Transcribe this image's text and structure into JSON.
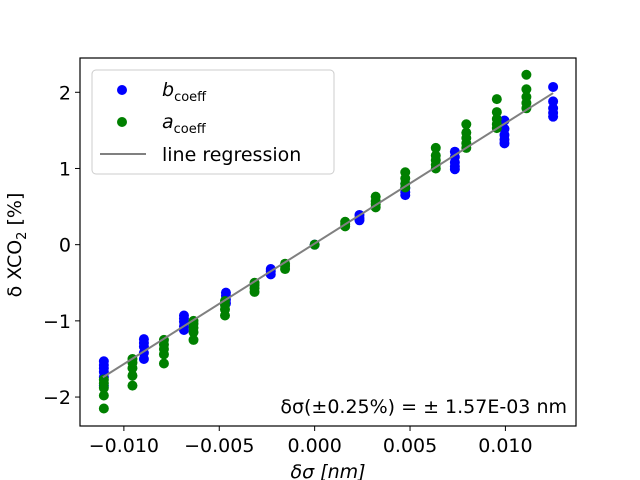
{
  "chart_data": {
    "type": "scatter",
    "title": "",
    "xlabel": {
      "main": "δσ [nm]"
    },
    "ylabel": {
      "prefix": "δ XCO",
      "subscript": "2",
      "suffix": " [%]"
    },
    "xlim": [
      -0.0123,
      0.0137
    ],
    "ylim": [
      -2.38,
      2.45
    ],
    "xticks": [
      -0.01,
      -0.005,
      0.0,
      0.005,
      0.01
    ],
    "xtick_labels": [
      "−0.010",
      "−0.005",
      "0.000",
      "0.005",
      "0.010"
    ],
    "yticks": [
      -2,
      -1,
      0,
      1,
      2
    ],
    "ytick_labels": [
      "−2",
      "−1",
      "0",
      "1",
      "2"
    ],
    "grid": false,
    "legend_position": "top-left",
    "annotation": "δσ(±0.25%) = ± 1.57E-03 nm",
    "series": [
      {
        "name": "b",
        "name_subscript": "coeff",
        "kind": "scatter",
        "color": "#0000ff",
        "points": [
          [
            -0.01105,
            -1.53
          ],
          [
            -0.01105,
            -1.58
          ],
          [
            -0.01105,
            -1.62
          ],
          [
            -0.01105,
            -1.67
          ],
          [
            -0.01105,
            -1.74
          ],
          [
            -0.01105,
            -1.85
          ],
          [
            -0.00895,
            -1.24
          ],
          [
            -0.00895,
            -1.29
          ],
          [
            -0.00895,
            -1.34
          ],
          [
            -0.00895,
            -1.42
          ],
          [
            -0.00895,
            -1.5
          ],
          [
            -0.00685,
            -0.93
          ],
          [
            -0.00685,
            -0.97
          ],
          [
            -0.00685,
            -1.01
          ],
          [
            -0.00685,
            -1.07
          ],
          [
            -0.00685,
            -1.12
          ],
          [
            -0.00465,
            -0.63
          ],
          [
            -0.00465,
            -0.67
          ],
          [
            -0.00465,
            -0.72
          ],
          [
            -0.00465,
            -0.77
          ],
          [
            -0.0023,
            -0.32
          ],
          [
            -0.0023,
            -0.35
          ],
          [
            -0.0023,
            -0.39
          ],
          [
            0.0,
            0.0
          ],
          [
            0.00235,
            0.32
          ],
          [
            0.00235,
            0.35
          ],
          [
            0.00235,
            0.39
          ],
          [
            0.00475,
            0.65
          ],
          [
            0.00475,
            0.69
          ],
          [
            0.00475,
            0.74
          ],
          [
            0.00475,
            0.8
          ],
          [
            0.00735,
            0.99
          ],
          [
            0.00735,
            1.03
          ],
          [
            0.00735,
            1.08
          ],
          [
            0.00735,
            1.15
          ],
          [
            0.00735,
            1.22
          ],
          [
            0.00995,
            1.33
          ],
          [
            0.00995,
            1.38
          ],
          [
            0.00995,
            1.44
          ],
          [
            0.00995,
            1.52
          ],
          [
            0.00995,
            1.63
          ],
          [
            0.0125,
            1.68
          ],
          [
            0.0125,
            1.73
          ],
          [
            0.0125,
            1.79
          ],
          [
            0.0125,
            1.88
          ],
          [
            0.0125,
            2.07
          ]
        ]
      },
      {
        "name": "a",
        "name_subscript": "coeff",
        "kind": "scatter",
        "color": "#008000",
        "points": [
          [
            -0.01105,
            -1.77
          ],
          [
            -0.01105,
            -1.82
          ],
          [
            -0.01105,
            -1.88
          ],
          [
            -0.01105,
            -1.98
          ],
          [
            -0.01105,
            -2.15
          ],
          [
            -0.00955,
            -1.5
          ],
          [
            -0.00955,
            -1.55
          ],
          [
            -0.00955,
            -1.62
          ],
          [
            -0.00955,
            -1.72
          ],
          [
            -0.00955,
            -1.85
          ],
          [
            -0.0079,
            -1.25
          ],
          [
            -0.0079,
            -1.31
          ],
          [
            -0.0079,
            -1.37
          ],
          [
            -0.0079,
            -1.44
          ],
          [
            -0.0079,
            -1.56
          ],
          [
            -0.00635,
            -1.0
          ],
          [
            -0.00635,
            -1.04
          ],
          [
            -0.00635,
            -1.09
          ],
          [
            -0.00635,
            -1.15
          ],
          [
            -0.00635,
            -1.25
          ],
          [
            -0.0047,
            -0.74
          ],
          [
            -0.0047,
            -0.79
          ],
          [
            -0.0047,
            -0.85
          ],
          [
            -0.0047,
            -0.93
          ],
          [
            -0.00315,
            -0.5
          ],
          [
            -0.00315,
            -0.53
          ],
          [
            -0.00315,
            -0.57
          ],
          [
            -0.00315,
            -0.62
          ],
          [
            -0.00155,
            -0.25
          ],
          [
            -0.00155,
            -0.28
          ],
          [
            -0.00155,
            -0.32
          ],
          [
            0.0,
            0.0
          ],
          [
            0.0016,
            0.24
          ],
          [
            0.0016,
            0.27
          ],
          [
            0.0016,
            0.3
          ],
          [
            0.0032,
            0.49
          ],
          [
            0.0032,
            0.53
          ],
          [
            0.0032,
            0.57
          ],
          [
            0.0032,
            0.63
          ],
          [
            0.00475,
            0.75
          ],
          [
            0.00475,
            0.8
          ],
          [
            0.00475,
            0.87
          ],
          [
            0.00475,
            0.95
          ],
          [
            0.00635,
            1.0
          ],
          [
            0.00635,
            1.05
          ],
          [
            0.00635,
            1.11
          ],
          [
            0.00635,
            1.17
          ],
          [
            0.00635,
            1.27
          ],
          [
            0.00795,
            1.27
          ],
          [
            0.00795,
            1.33
          ],
          [
            0.00795,
            1.4
          ],
          [
            0.00795,
            1.47
          ],
          [
            0.00795,
            1.58
          ],
          [
            0.00955,
            1.53
          ],
          [
            0.00955,
            1.58
          ],
          [
            0.00955,
            1.65
          ],
          [
            0.00955,
            1.74
          ],
          [
            0.00955,
            1.91
          ],
          [
            0.0111,
            1.79
          ],
          [
            0.0111,
            1.86
          ],
          [
            0.0111,
            1.94
          ],
          [
            0.0111,
            2.04
          ],
          [
            0.0111,
            2.23
          ]
        ]
      },
      {
        "name": "line regression",
        "kind": "line",
        "color": "#808080",
        "x": [
          -0.0111,
          0.0125
        ],
        "y": [
          -1.74,
          1.99
        ]
      }
    ]
  }
}
